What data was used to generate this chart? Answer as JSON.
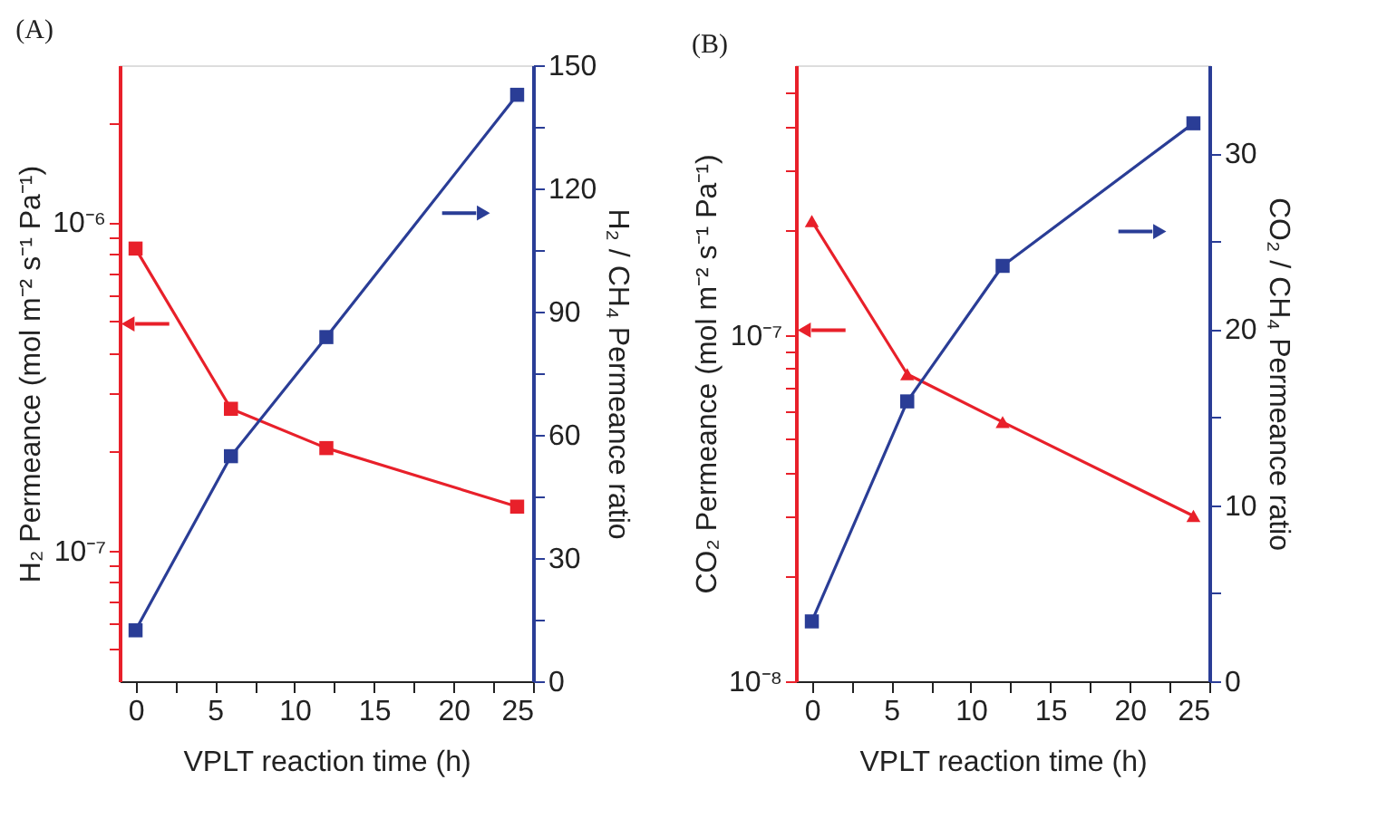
{
  "chart_data": [
    {
      "type": "line",
      "title": "(A)",
      "xlabel": "VPLT reaction time (h)",
      "ylabel": "H₂ Permeance (mol m⁻² s⁻¹ Pa⁻¹)",
      "y2label": "H₂ / CH₄ Permeance ratio",
      "x": [
        0,
        6,
        12,
        24
      ],
      "xlim": [
        -1,
        25
      ],
      "xticks": [
        0,
        {
          "value": 2.5,
          "label": null
        },
        5,
        {
          "value": 7.5,
          "label": null
        },
        10,
        {
          "value": 12.5,
          "label": null
        },
        15,
        {
          "value": 17.5,
          "label": null
        },
        20,
        {
          "value": 22.5,
          "label": null
        },
        25
      ],
      "log": "y",
      "ylim": [
        4e-08,
        3e-06
      ],
      "yticks": [
        {
          "value": 5e-08,
          "label": null
        },
        {
          "value": 6e-08,
          "label": null
        },
        {
          "value": 7e-08,
          "label": null
        },
        {
          "value": 8e-08,
          "label": null
        },
        {
          "value": 9e-08,
          "label": null
        },
        {
          "value": 1e-07,
          "label": "10⁻⁷"
        },
        {
          "value": 2e-07,
          "label": null
        },
        {
          "value": 3e-07,
          "label": null
        },
        {
          "value": 4e-07,
          "label": null
        },
        {
          "value": 5e-07,
          "label": null
        },
        {
          "value": 6e-07,
          "label": null
        },
        {
          "value": 7e-07,
          "label": null
        },
        {
          "value": 8e-07,
          "label": null
        },
        {
          "value": 9e-07,
          "label": null
        },
        {
          "value": 1e-06,
          "label": "10⁻⁶"
        },
        {
          "value": 2e-06,
          "label": null
        }
      ],
      "y2lim": [
        0,
        150
      ],
      "y2ticks": [
        0,
        {
          "value": 15,
          "label": null
        },
        30,
        {
          "value": 45,
          "label": null
        },
        60,
        {
          "value": 75,
          "label": null
        },
        90,
        {
          "value": 105,
          "label": null
        },
        120,
        {
          "value": 135,
          "label": null
        },
        150
      ],
      "grid": false,
      "line_style": "solid",
      "series": [
        {
          "color": "#e8202a",
          "marker": "square",
          "axis": "y",
          "values": [
            8.3e-07,
            2.7e-07,
            2.05e-07,
            1.36e-07
          ]
        },
        {
          "color": "#2a3d96",
          "marker": "square",
          "axis": "y2",
          "values": [
            12.4,
            54.8,
            83.8,
            142.8
          ]
        }
      ]
    },
    {
      "type": "line",
      "title": "(B)",
      "xlabel": "VPLT reaction time (h)",
      "ylabel": "CO₂ Permeance (mol m⁻² s⁻¹ Pa⁻¹)",
      "y2label": "CO₂ / CH₄ Permeance ratio",
      "x": [
        0,
        6,
        12,
        24
      ],
      "xlim": [
        -1,
        25
      ],
      "xticks": [
        0,
        {
          "value": 2.5,
          "label": null
        },
        5,
        {
          "value": 7.5,
          "label": null
        },
        10,
        {
          "value": 12.5,
          "label": null
        },
        15,
        {
          "value": 17.5,
          "label": null
        },
        20,
        {
          "value": 22.5,
          "label": null
        },
        25
      ],
      "log": "y",
      "ylim": [
        1e-08,
        6e-07
      ],
      "yticks": [
        {
          "value": 1e-08,
          "label": "10⁻⁸"
        },
        {
          "value": 2e-08,
          "label": null
        },
        {
          "value": 3e-08,
          "label": null
        },
        {
          "value": 4e-08,
          "label": null
        },
        {
          "value": 5e-08,
          "label": null
        },
        {
          "value": 6e-08,
          "label": null
        },
        {
          "value": 7e-08,
          "label": null
        },
        {
          "value": 8e-08,
          "label": null
        },
        {
          "value": 9e-08,
          "label": null
        },
        {
          "value": 1e-07,
          "label": "10⁻⁷"
        },
        {
          "value": 2e-07,
          "label": null
        },
        {
          "value": 3e-07,
          "label": null
        },
        {
          "value": 4e-07,
          "label": null
        },
        {
          "value": 5e-07,
          "label": null
        }
      ],
      "y2lim": [
        0,
        35
      ],
      "y2ticks": [
        0,
        {
          "value": 5,
          "label": null
        },
        10,
        {
          "value": 15,
          "label": null
        },
        20,
        {
          "value": 25,
          "label": null
        },
        30
      ],
      "grid": false,
      "line_style": "solid",
      "series": [
        {
          "color": "#e8202a",
          "marker": "triangle",
          "axis": "y",
          "values": [
            2.13e-07,
            7.7e-08,
            5.6e-08,
            3e-08
          ]
        },
        {
          "color": "#2a3d96",
          "marker": "square",
          "axis": "y2",
          "values": [
            3.4,
            15.9,
            23.6,
            31.7
          ]
        }
      ]
    }
  ]
}
